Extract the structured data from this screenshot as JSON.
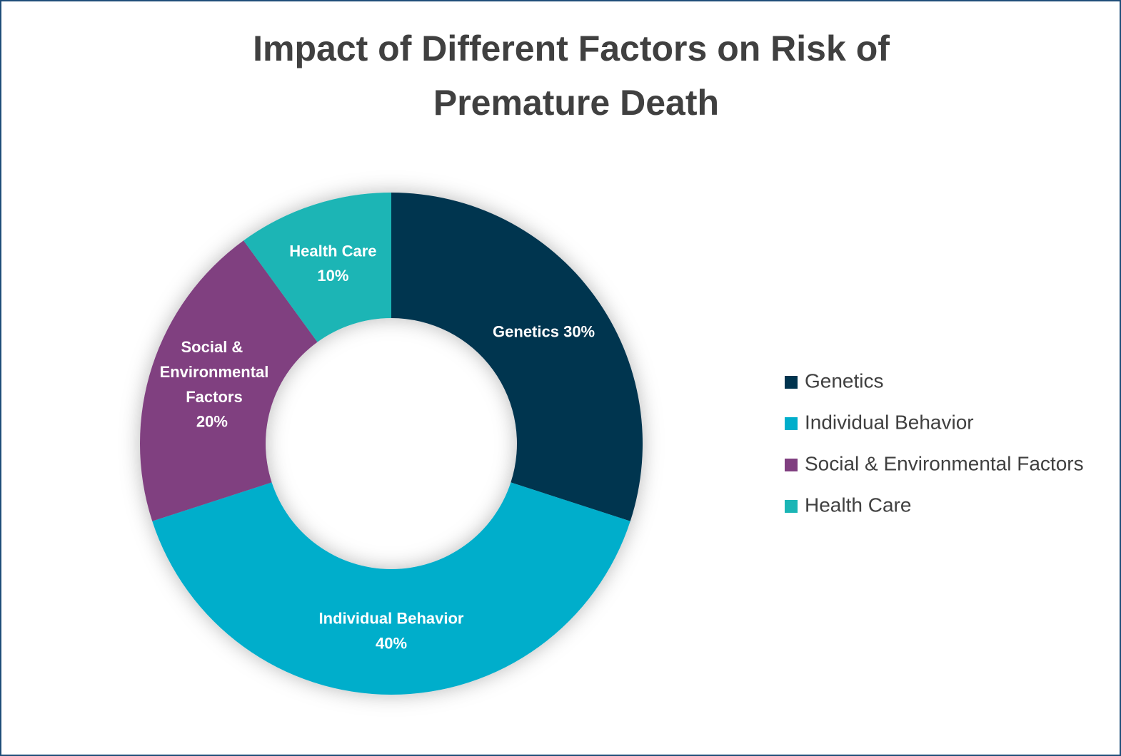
{
  "chart_data": {
    "type": "donut",
    "title": "Impact of Different Factors on Risk of Premature Death",
    "categories": [
      "Genetics",
      "Individual Behavior",
      "Social & Environmental Factors",
      "Health Care"
    ],
    "values": [
      30,
      40,
      20,
      10
    ],
    "value_labels": [
      "30%",
      "40%",
      "20%",
      "10%"
    ],
    "colors": [
      "#00344f",
      "#00aecb",
      "#803f80",
      "#1ab5b5"
    ],
    "legend": "right"
  }
}
